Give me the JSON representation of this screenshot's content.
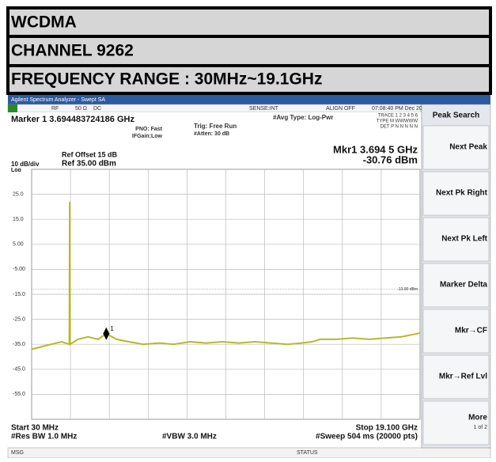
{
  "header": {
    "rows": [
      "WCDMA",
      "CHANNEL 9262",
      "FREQUENCY RANGE : 30MHz~19.1GHz"
    ]
  },
  "window": {
    "title": "Agilent Spectrum Analyzer - Swept SA"
  },
  "status_bar": {
    "rf": "RF",
    "impedance": "50 Ω",
    "coupling": "DC",
    "sense": "SENSE:INT",
    "align": "ALIGN OFF",
    "datetime": "07:08:40 PM Dec 20, 2012"
  },
  "settings": {
    "marker_freq": "Marker 1 3.694483724186 GHz",
    "pno": "PNO: Fast",
    "ifgain": "IFGain:Low",
    "trig": "Trig: Free Run",
    "atten": "#Atten: 30 dB",
    "avg_type": "#Avg Type: Log-Pwr",
    "trace": "TRACE 1 2 3 4 5 6",
    "type": "TYPE M WWWWW",
    "det": "DET P N N N N N"
  },
  "readout": {
    "mkr_freq": "Mkr1 3.694 5 GHz",
    "mkr_level": "-30.76 dBm",
    "ref_offset": "Ref Offset 15 dB",
    "scale": "10 dB/div",
    "log": "Log",
    "ref_level": "Ref 35.00 dBm"
  },
  "footer": {
    "start": "Start 30 MHz",
    "stop": "Stop 19.100 GHz",
    "rbw": "#Res BW 1.0 MHz",
    "vbw": "#VBW 3.0 MHz",
    "sweep": "#Sweep  504 ms (20000 pts)",
    "msg": "MSG",
    "status": "STATUS"
  },
  "softkeys": {
    "title": "Peak Search",
    "keys": [
      "Next Peak",
      "Next Pk Right",
      "Next Pk Left",
      "Marker Delta",
      "Mkr→CF",
      "Mkr→Ref Lvl",
      "More"
    ],
    "page": "1 of 2"
  },
  "chart_data": {
    "type": "line",
    "xlim": [
      0.03,
      19.1
    ],
    "ylim": [
      -65,
      35
    ],
    "yticks": [
      {
        "value": 25,
        "label": "25.0"
      },
      {
        "value": 15,
        "label": "15.0"
      },
      {
        "value": 5,
        "label": "5.00"
      },
      {
        "value": -5,
        "label": "-5.00"
      },
      {
        "value": -15,
        "label": "-15.0"
      },
      {
        "value": -25,
        "label": "-25.0"
      },
      {
        "value": -35,
        "label": "-35.0"
      },
      {
        "value": -45,
        "label": "-45.0"
      },
      {
        "value": -55,
        "label": "-55.0"
      }
    ],
    "grid": true,
    "display_line": {
      "value": -13,
      "label": "-13.00 dBm"
    },
    "marker": {
      "label": "1",
      "x": 3.694,
      "y": -30.76
    },
    "x": [
      0.03,
      0.5,
      1.0,
      1.5,
      1.88,
      1.9,
      1.92,
      2.3,
      2.8,
      3.3,
      3.694,
      4.2,
      4.8,
      5.5,
      6.3,
      7.0,
      7.8,
      8.6,
      9.4,
      10.2,
      11.0,
      11.8,
      12.6,
      13.3,
      13.8,
      14.2,
      15.0,
      15.8,
      16.6,
      17.4,
      18.2,
      18.8,
      19.1
    ],
    "series": [
      {
        "name": "Trace 1",
        "color": "#b8b82a",
        "values": [
          -37,
          -36,
          -35,
          -34,
          -35,
          22,
          -35,
          -33,
          -32,
          -33,
          -30.76,
          -33,
          -34,
          -35,
          -34.5,
          -35,
          -34,
          -34.5,
          -34,
          -34.5,
          -34,
          -34.5,
          -35,
          -34.5,
          -34,
          -33,
          -33,
          -32.5,
          -33,
          -32.5,
          -32,
          -31,
          -30.5
        ]
      }
    ]
  }
}
